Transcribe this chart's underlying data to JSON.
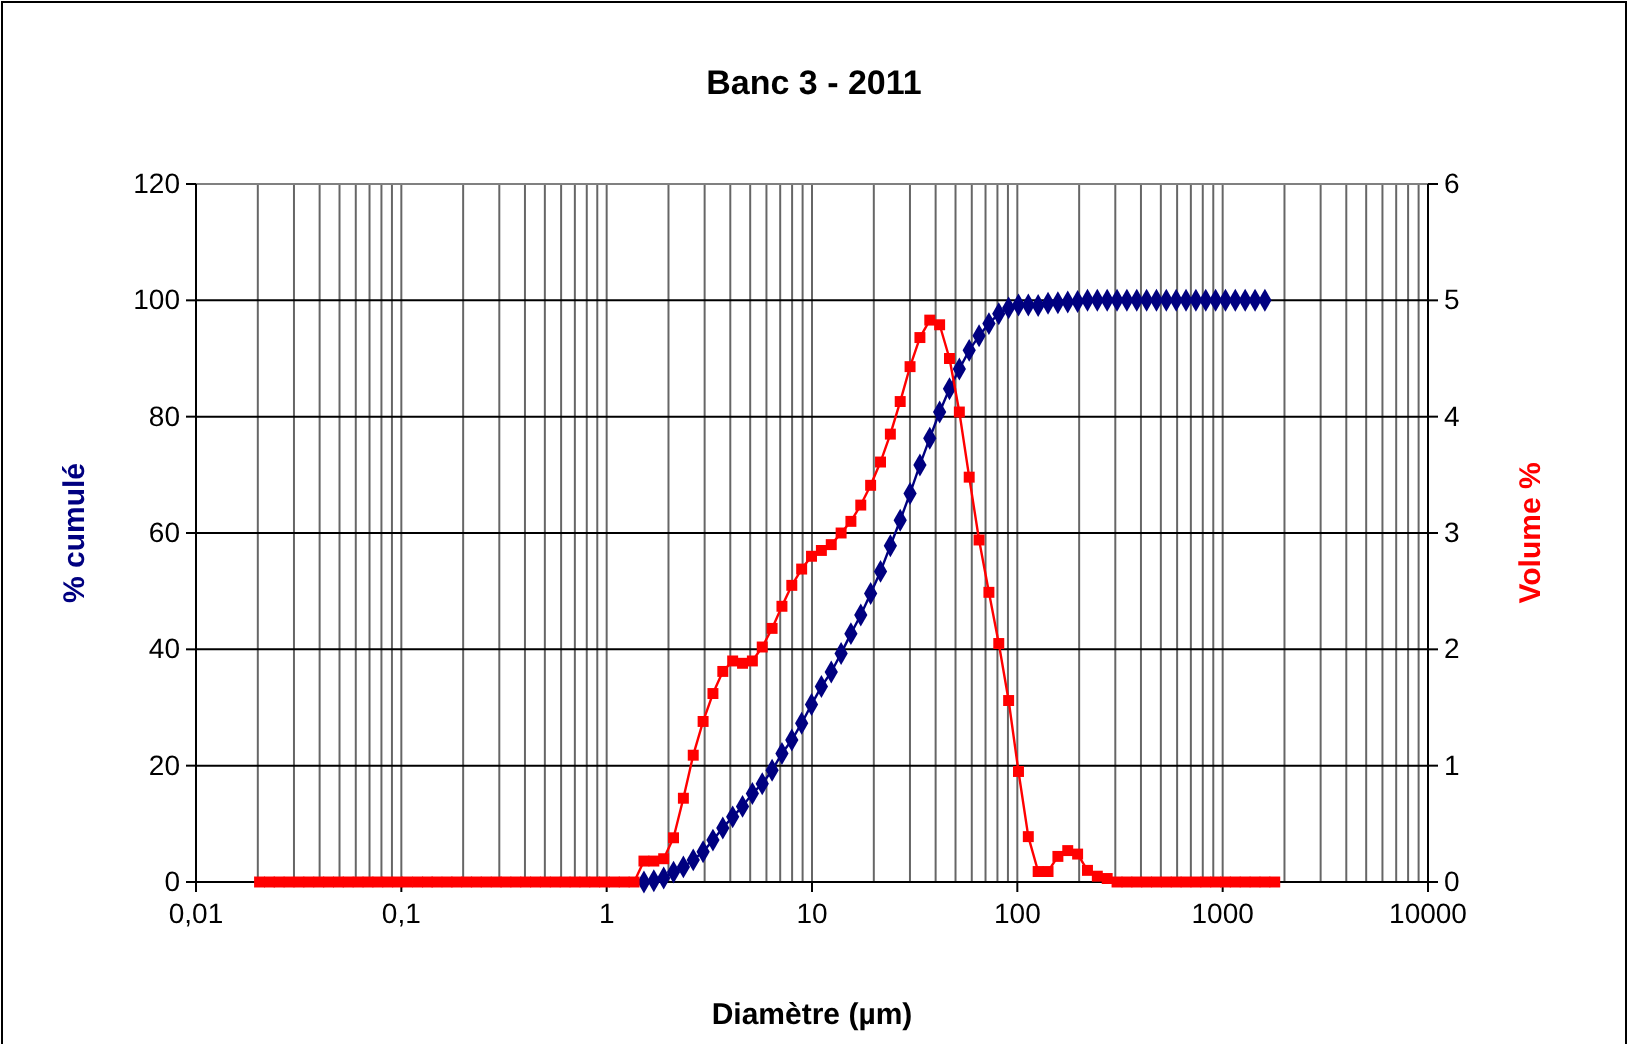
{
  "chart_data": {
    "type": "line",
    "title": "Banc 3 - 2011",
    "xlabel": "Diamètre (µm)",
    "ylabel": "% cumulé",
    "y2label": "Volume %",
    "log": "x",
    "grid": true,
    "line_style": "solid",
    "xlim": [
      0.01,
      10000
    ],
    "xticks": [
      {
        "value": 0.01,
        "label": "0,01"
      },
      {
        "value": 0.1,
        "label": "0,1"
      },
      1,
      10,
      100,
      1000,
      10000
    ],
    "ylim": [
      0,
      120
    ],
    "yticks": [
      0,
      20,
      40,
      60,
      80,
      100,
      120
    ],
    "y2lim": [
      0,
      6
    ],
    "y2ticks": [
      0,
      1,
      2,
      3,
      4,
      5,
      6
    ],
    "series": [
      {
        "color": "#000080",
        "marker": "diamond",
        "x": [
          1.519,
          1.697,
          1.895,
          2.117,
          2.364,
          2.64,
          2.949,
          3.293,
          3.678,
          4.108,
          4.589,
          5.124,
          5.723,
          6.392,
          7.139,
          7.973,
          8.905,
          9.945,
          11.11,
          12.41,
          13.86,
          15.47,
          17.28,
          19.3,
          21.56,
          24.08,
          26.89,
          30.03,
          33.54,
          37.46,
          41.84,
          46.73,
          52.19,
          58.29,
          65.11,
          72.71,
          81.21,
          90.7,
          101.3,
          113.1,
          126.3,
          141.1,
          157.6,
          176,
          196.6,
          219.6,
          245.2,
          273.9,
          305.9,
          341.6,
          381.6,
          426.2,
          476,
          531.6,
          593.7,
          663.1,
          740.6,
          827.1,
          923.8,
          1032,
          1152,
          1287,
          1438,
          1606
        ],
        "values": [
          0,
          0.2,
          0.7,
          1.7,
          2.6,
          3.8,
          5.2,
          7.2,
          9.3,
          11.2,
          13,
          15.2,
          16.9,
          19.2,
          22.1,
          24.4,
          27.3,
          30.5,
          33.6,
          36.1,
          39.3,
          42.7,
          45.9,
          49.6,
          53.4,
          57.8,
          62.2,
          66.8,
          71.7,
          76.3,
          80.8,
          84.8,
          88.2,
          91.4,
          93.9,
          96,
          97.7,
          98.7,
          99.2,
          99.2,
          99.1,
          99.5,
          99.6,
          99.7,
          99.8,
          100,
          100,
          100,
          100,
          100,
          100,
          100,
          100,
          100,
          100,
          100,
          100,
          100,
          100,
          100,
          100,
          100,
          100,
          100
        ]
      },
      {
        "color": "#ff0000",
        "marker": "square",
        "axis": "y2",
        "x": [
          0.0204,
          0.0228,
          0.0254,
          0.0284,
          0.0317,
          0.0354,
          0.0396,
          0.0442,
          0.0494,
          0.0551,
          0.0616,
          0.0688,
          0.0768,
          0.0858,
          0.0959,
          0.107,
          0.12,
          0.134,
          0.149,
          0.167,
          0.186,
          0.208,
          0.232,
          0.259,
          0.29,
          0.323,
          0.361,
          0.403,
          0.45,
          0.503,
          0.562,
          0.628,
          0.701,
          0.783,
          0.874,
          0.976,
          1.09,
          1.218,
          1.36,
          1.519,
          1.697,
          1.895,
          2.117,
          2.364,
          2.64,
          2.949,
          3.293,
          3.678,
          4.108,
          4.589,
          5.124,
          5.723,
          6.392,
          7.139,
          7.973,
          8.905,
          9.945,
          11.11,
          12.41,
          13.86,
          15.47,
          17.28,
          19.3,
          21.56,
          24.08,
          26.89,
          30.03,
          33.54,
          37.46,
          41.84,
          46.73,
          52.19,
          58.29,
          65.11,
          72.71,
          81.21,
          90.7,
          101.3,
          113.1,
          126.3,
          141.1,
          157.6,
          176,
          196.6,
          219.6,
          245.2,
          273.9,
          305.9,
          341.6,
          381.6,
          426.2,
          476,
          531.6,
          593.7,
          663.1,
          740.6,
          827.1,
          923.8,
          1032,
          1152,
          1287,
          1438,
          1606,
          1793
        ],
        "values": [
          0,
          0,
          0,
          0,
          0,
          0,
          0,
          0,
          0,
          0,
          0,
          0,
          0,
          0,
          0,
          0,
          0,
          0,
          0,
          0,
          0,
          0,
          0,
          0,
          0,
          0,
          0,
          0,
          0,
          0,
          0,
          0,
          0,
          0,
          0,
          0,
          0,
          0,
          0,
          0.18,
          0.18,
          0.2,
          0.38,
          0.72,
          1.09,
          1.38,
          1.62,
          1.81,
          1.9,
          1.88,
          1.9,
          2.02,
          2.18,
          2.37,
          2.55,
          2.69,
          2.8,
          2.85,
          2.9,
          3,
          3.1,
          3.24,
          3.41,
          3.61,
          3.85,
          4.13,
          4.43,
          4.68,
          4.83,
          4.79,
          4.5,
          4.04,
          3.48,
          2.94,
          2.49,
          2.05,
          1.56,
          0.95,
          0.39,
          0.09,
          0.09,
          0.22,
          0.27,
          0.24,
          0.1,
          0.05,
          0.03,
          0,
          0,
          0,
          0,
          0,
          0,
          0,
          0,
          0,
          0,
          0,
          0,
          0,
          0,
          0,
          0,
          0
        ]
      }
    ]
  }
}
